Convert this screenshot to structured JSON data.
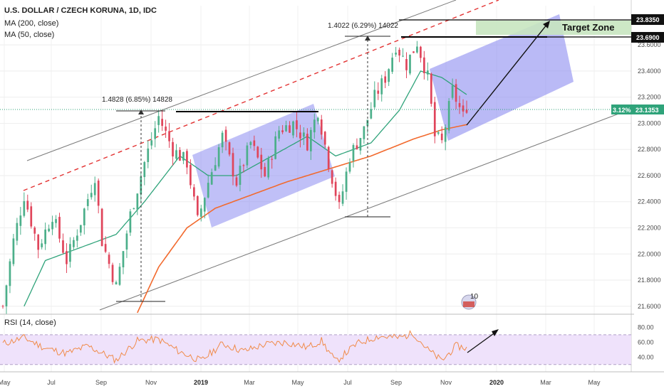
{
  "header": {
    "title": "U.S. DOLLAR / CZECH KORUNA, 1D, IDC",
    "indicator_ma200": "MA (200, close)",
    "indicator_ma50": "MA (50, close)"
  },
  "annotations": {
    "measure_left": "1.4828 (6.85%) 14828",
    "measure_right": "1.4022 (6.29%) 14022",
    "target_zone": "Target Zone",
    "watermark": "10"
  },
  "rsi": {
    "label": "RSI (14, close)",
    "ticks": [
      "80.00",
      "60.00",
      "40.00"
    ]
  },
  "colors": {
    "candle_up": "#4caf8a",
    "candle_down": "#e0455b",
    "ma200": "#f26a2e",
    "ma50": "#2fa37a",
    "channel_fill": "#8c8cf0",
    "target_fill": "#c8e6c0",
    "rsi_line": "#f08b4a",
    "rsi_band": "#efe2fb",
    "price_tag": "#2fa37a",
    "trend_red": "#e33"
  },
  "chart_data": {
    "type": "candlestick",
    "symbol": "USD/CZK",
    "timeframe": "1D",
    "ylim": [
      21.55,
      23.9
    ],
    "y_ticks": [
      "23.6000",
      "23.4000",
      "23.2000",
      "23.0000",
      "22.8000",
      "22.6000",
      "22.4000",
      "22.2000",
      "22.0000",
      "21.8000",
      "21.6000"
    ],
    "y_tick_values": [
      23.6,
      23.4,
      23.2,
      23.0,
      22.8,
      22.6,
      22.4,
      22.2,
      22.0,
      21.8,
      21.6
    ],
    "x_ticks": [
      "May",
      "Jul",
      "Sep",
      "Nov",
      "2019",
      "Mar",
      "May",
      "Jul",
      "Sep",
      "Nov",
      "2020",
      "Mar",
      "May"
    ],
    "x_tick_bold": [
      false,
      false,
      false,
      false,
      true,
      false,
      false,
      false,
      false,
      false,
      true,
      false,
      false
    ],
    "price_labels": {
      "target_high": "23.8350",
      "target_low": "23.6900",
      "last_pct": "3.12%",
      "last_price": "23.1353"
    },
    "price_levels": {
      "target_high": 23.835,
      "target_low": 23.69,
      "last_price": 23.1353
    },
    "close_waypoints": [
      {
        "t": 0,
        "v": 21.6
      },
      {
        "t": 3,
        "v": 22.1
      },
      {
        "t": 6,
        "v": 22.45
      },
      {
        "t": 10,
        "v": 22.05
      },
      {
        "t": 14,
        "v": 22.3
      },
      {
        "t": 18,
        "v": 21.95
      },
      {
        "t": 22,
        "v": 22.25
      },
      {
        "t": 26,
        "v": 22.6
      },
      {
        "t": 28,
        "v": 22.1
      },
      {
        "t": 32,
        "v": 21.75
      },
      {
        "t": 36,
        "v": 22.3
      },
      {
        "t": 40,
        "v": 22.7
      },
      {
        "t": 44,
        "v": 23.05
      },
      {
        "t": 48,
        "v": 22.8
      },
      {
        "t": 52,
        "v": 22.7
      },
      {
        "t": 55,
        "v": 22.25
      },
      {
        "t": 58,
        "v": 22.55
      },
      {
        "t": 62,
        "v": 22.9
      },
      {
        "t": 66,
        "v": 22.55
      },
      {
        "t": 70,
        "v": 22.85
      },
      {
        "t": 74,
        "v": 22.6
      },
      {
        "t": 78,
        "v": 22.95
      },
      {
        "t": 82,
        "v": 23.0
      },
      {
        "t": 86,
        "v": 22.85
      },
      {
        "t": 89,
        "v": 23.1
      },
      {
        "t": 92,
        "v": 22.7
      },
      {
        "t": 95,
        "v": 22.35
      },
      {
        "t": 98,
        "v": 22.75
      },
      {
        "t": 102,
        "v": 22.95
      },
      {
        "t": 105,
        "v": 23.2
      },
      {
        "t": 108,
        "v": 23.35
      },
      {
        "t": 111,
        "v": 23.6
      },
      {
        "t": 114,
        "v": 23.45
      },
      {
        "t": 117,
        "v": 23.62
      },
      {
        "t": 120,
        "v": 23.35
      },
      {
        "t": 122,
        "v": 22.9
      },
      {
        "t": 124,
        "v": 22.85
      },
      {
        "t": 127,
        "v": 23.25
      },
      {
        "t": 130,
        "v": 23.05
      },
      {
        "t": 131,
        "v": 23.1353
      }
    ],
    "ma200_waypoints": [
      {
        "t": 38,
        "v": 21.55
      },
      {
        "t": 44,
        "v": 21.9
      },
      {
        "t": 52,
        "v": 22.2
      },
      {
        "t": 60,
        "v": 22.35
      },
      {
        "t": 70,
        "v": 22.45
      },
      {
        "t": 80,
        "v": 22.55
      },
      {
        "t": 92,
        "v": 22.65
      },
      {
        "t": 104,
        "v": 22.75
      },
      {
        "t": 116,
        "v": 22.88
      },
      {
        "t": 124,
        "v": 22.95
      },
      {
        "t": 131,
        "v": 22.99
      }
    ],
    "ma50_waypoints": [
      {
        "t": 6,
        "v": 21.6
      },
      {
        "t": 12,
        "v": 21.95
      },
      {
        "t": 22,
        "v": 22.05
      },
      {
        "t": 32,
        "v": 22.15
      },
      {
        "t": 40,
        "v": 22.4
      },
      {
        "t": 50,
        "v": 22.75
      },
      {
        "t": 58,
        "v": 22.6
      },
      {
        "t": 66,
        "v": 22.6
      },
      {
        "t": 76,
        "v": 22.75
      },
      {
        "t": 86,
        "v": 22.9
      },
      {
        "t": 94,
        "v": 22.75
      },
      {
        "t": 104,
        "v": 22.85
      },
      {
        "t": 112,
        "v": 23.1
      },
      {
        "t": 118,
        "v": 23.4
      },
      {
        "t": 124,
        "v": 23.35
      },
      {
        "t": 131,
        "v": 23.22
      }
    ],
    "rsi_ylim": [
      25,
      90
    ],
    "rsi_band": [
      30,
      70
    ],
    "rsi_tick_values": [
      80,
      60,
      40
    ],
    "rsi_waypoints": [
      {
        "t": 0,
        "v": 58
      },
      {
        "t": 6,
        "v": 66
      },
      {
        "t": 12,
        "v": 52
      },
      {
        "t": 18,
        "v": 45
      },
      {
        "t": 24,
        "v": 55
      },
      {
        "t": 32,
        "v": 36
      },
      {
        "t": 38,
        "v": 62
      },
      {
        "t": 44,
        "v": 64
      },
      {
        "t": 50,
        "v": 47
      },
      {
        "t": 56,
        "v": 35
      },
      {
        "t": 62,
        "v": 58
      },
      {
        "t": 68,
        "v": 48
      },
      {
        "t": 74,
        "v": 57
      },
      {
        "t": 80,
        "v": 60
      },
      {
        "t": 86,
        "v": 53
      },
      {
        "t": 90,
        "v": 62
      },
      {
        "t": 94,
        "v": 34
      },
      {
        "t": 100,
        "v": 58
      },
      {
        "t": 106,
        "v": 68
      },
      {
        "t": 112,
        "v": 66
      },
      {
        "t": 116,
        "v": 72
      },
      {
        "t": 120,
        "v": 50
      },
      {
        "t": 124,
        "v": 35
      },
      {
        "t": 128,
        "v": 55
      },
      {
        "t": 131,
        "v": 52
      }
    ]
  }
}
